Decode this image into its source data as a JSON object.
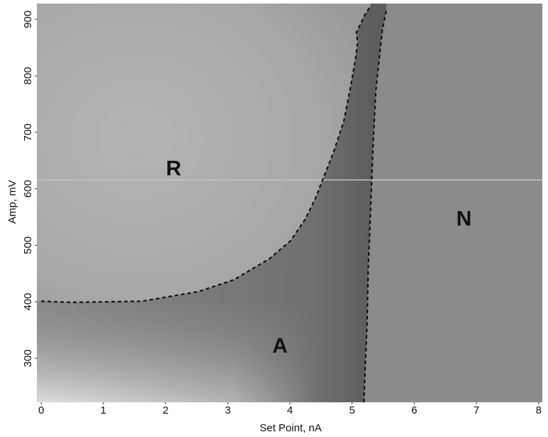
{
  "chart_data": {
    "type": "map",
    "x_label": "Set Point, nA",
    "y_label": "Amp, mV",
    "xlim": [
      -0.07,
      8.06
    ],
    "xticks": [
      0,
      1,
      2,
      3,
      4,
      5,
      6,
      7,
      8
    ],
    "ylim": [
      222,
      928
    ],
    "yticks": [
      300,
      400,
      500,
      600,
      700,
      800,
      900
    ],
    "boundaries": [
      {
        "x": [
          0,
          0.48,
          1.62,
          2.53,
          3.1,
          3.67,
          4.01,
          4.24,
          4.41,
          4.52,
          4.7,
          4.87,
          4.98,
          5.06,
          5.09,
          5.07,
          5.21,
          5.3
        ],
        "y": [
          401,
          399,
          401,
          418,
          439,
          476,
          508,
          545,
          583,
          614,
          664,
          721,
          783,
          834,
          859,
          877,
          909,
          924
        ]
      },
      {
        "x": [
          5.19,
          5.21,
          5.24,
          5.26,
          5.3,
          5.34,
          5.38,
          5.44,
          5.49,
          5.55
        ],
        "y": [
          222,
          282,
          357,
          458,
          570,
          683,
          771,
          834,
          884,
          915
        ]
      }
    ],
    "annotations": [
      {
        "text": "R",
        "x": 2.13,
        "y": 634
      },
      {
        "text": "A",
        "x": 3.84,
        "y": 320
      },
      {
        "text": "N",
        "x": 6.8,
        "y": 545
      }
    ]
  }
}
